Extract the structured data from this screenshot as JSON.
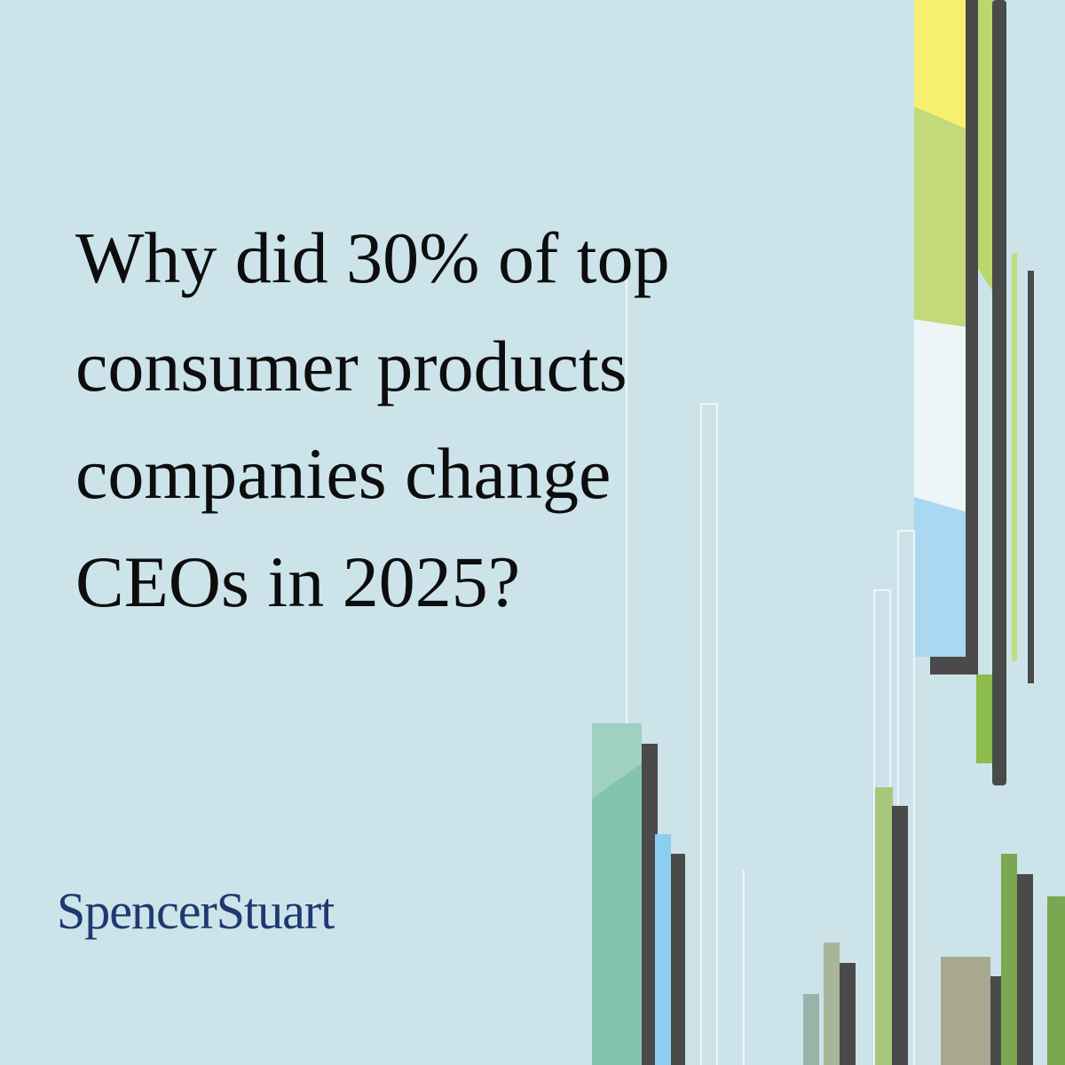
{
  "headline": {
    "lines": [
      "Why did 30% of top",
      "consumer products",
      "companies change",
      "CEOs in 2025?"
    ]
  },
  "brand": {
    "name": "SpencerStuart"
  }
}
